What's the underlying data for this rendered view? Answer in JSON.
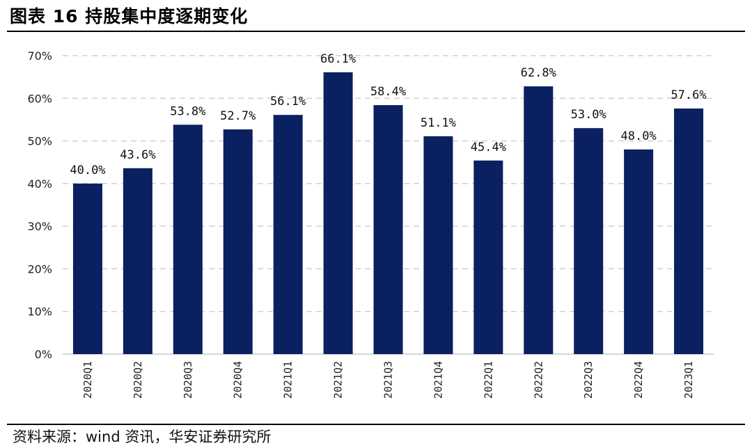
{
  "header": {
    "title": "图表 16 持股集中度逐期变化"
  },
  "footer": {
    "source": "资料来源：wind 资讯，华安证券研究所"
  },
  "chart_data": {
    "type": "bar",
    "categories": [
      "2020Q1",
      "2020Q2",
      "2020Q3",
      "2020Q4",
      "2021Q1",
      "2021Q2",
      "2021Q3",
      "2021Q4",
      "2022Q1",
      "2022Q2",
      "2022Q3",
      "2022Q4",
      "2023Q1"
    ],
    "values": [
      40.0,
      43.6,
      53.8,
      52.7,
      56.1,
      66.1,
      58.4,
      51.1,
      45.4,
      62.8,
      53.0,
      48.0,
      57.6
    ],
    "data_labels": [
      "40.0%",
      "43.6%",
      "53.8%",
      "52.7%",
      "56.1%",
      "66.1%",
      "58.4%",
      "51.1%",
      "45.4%",
      "62.8%",
      "53.0%",
      "48.0%",
      "57.6%"
    ],
    "yticks": [
      "0%",
      "10%",
      "20%",
      "30%",
      "40%",
      "50%",
      "60%",
      "70%"
    ],
    "ylim": [
      0,
      70
    ],
    "grid": true,
    "bar_color": "#0a2060"
  }
}
